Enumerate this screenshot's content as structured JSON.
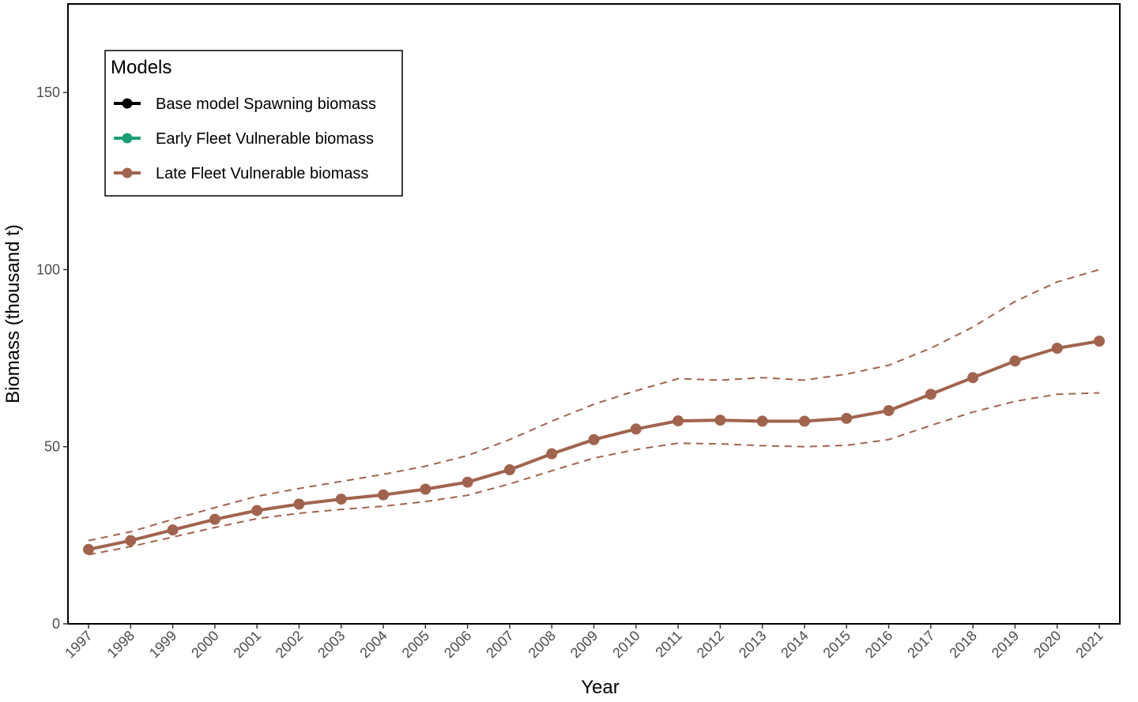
{
  "chart_data": {
    "type": "line",
    "title": "",
    "xlabel": "Year",
    "ylabel": "Biomass (thousand t)",
    "x": [
      1997,
      1998,
      1999,
      2000,
      2001,
      2002,
      2003,
      2004,
      2005,
      2006,
      2007,
      2008,
      2009,
      2010,
      2011,
      2012,
      2013,
      2014,
      2015,
      2016,
      2017,
      2018,
      2019,
      2020,
      2021
    ],
    "xticks": [
      "1997",
      "1998",
      "1999",
      "2000",
      "2001",
      "2002",
      "2003",
      "2004",
      "2005",
      "2006",
      "2007",
      "2008",
      "2009",
      "2010",
      "2011",
      "2012",
      "2013",
      "2014",
      "2015",
      "2016",
      "2017",
      "2018",
      "2019",
      "2020",
      "2021"
    ],
    "ylim": [
      0,
      175
    ],
    "yticks": [
      0,
      50,
      100,
      150
    ],
    "grid": false,
    "legend": {
      "title": "Models",
      "placement": "top-left",
      "entries": [
        {
          "label": "Base model Spawning biomass",
          "color": "#000000"
        },
        {
          "label": "Early Fleet Vulnerable biomass",
          "color": "#1b9e77"
        },
        {
          "label": "Late Fleet Vulnerable biomass",
          "color": "#a0644e"
        }
      ]
    },
    "series": [
      {
        "name": "Late Fleet Vulnerable biomass",
        "color": "#a0644e",
        "values": [
          21.0,
          23.5,
          26.5,
          29.5,
          32.0,
          33.8,
          35.2,
          36.4,
          38.0,
          40.0,
          43.5,
          48.0,
          52.0,
          55.0,
          57.3,
          57.5,
          57.2,
          57.2,
          58.0,
          60.2,
          64.8,
          69.5,
          74.2,
          77.8,
          79.8
        ],
        "upper": [
          23.5,
          26.0,
          29.5,
          32.8,
          36.0,
          38.2,
          40.2,
          42.2,
          44.5,
          47.5,
          52.0,
          57.2,
          62.0,
          65.8,
          69.2,
          68.8,
          69.5,
          68.8,
          70.5,
          73.0,
          77.8,
          83.8,
          91.0,
          96.5,
          100.0
        ],
        "lower": [
          19.5,
          21.8,
          24.5,
          27.2,
          29.7,
          31.2,
          32.3,
          33.2,
          34.5,
          36.3,
          39.5,
          43.2,
          46.8,
          49.2,
          51.0,
          50.8,
          50.3,
          50.0,
          50.4,
          52.0,
          56.0,
          59.8,
          62.8,
          64.8,
          65.2
        ]
      }
    ]
  }
}
